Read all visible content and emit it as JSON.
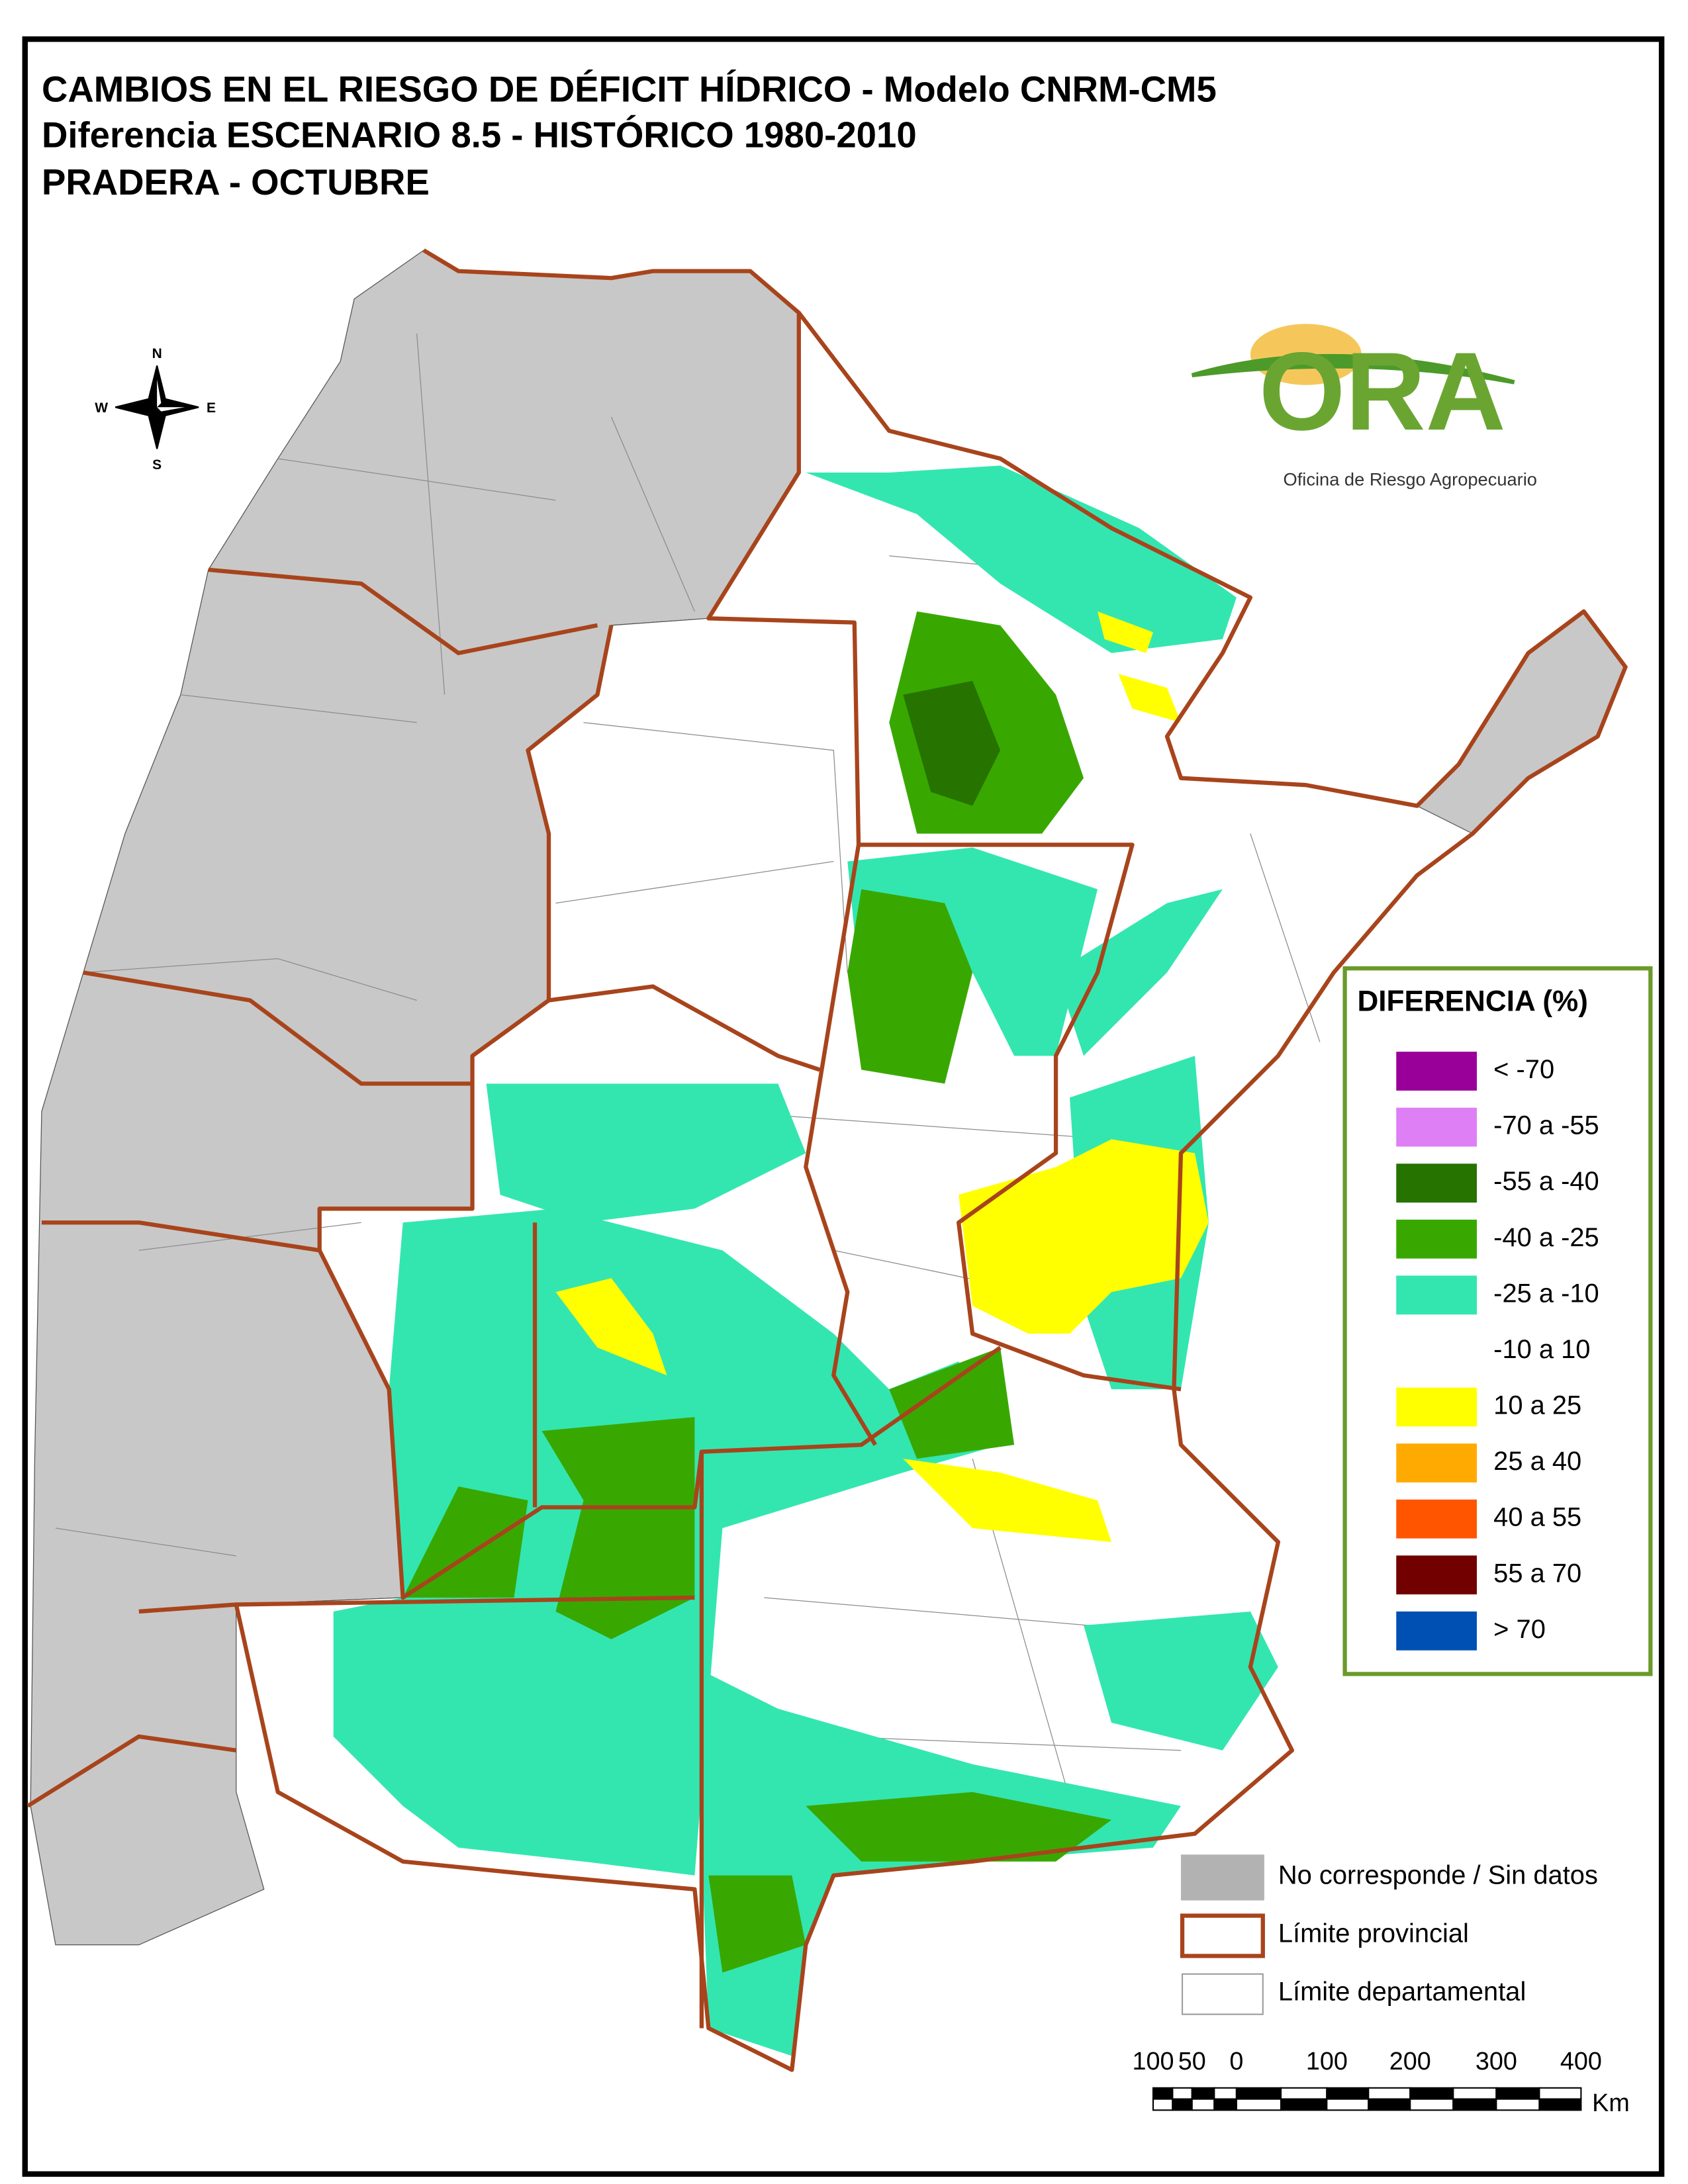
{
  "header": {
    "title_lines": [
      "CAMBIOS EN EL RIESGO DE DÉFICIT HÍDRICO - Modelo CNRM-CM5",
      "Diferencia ESCENARIO 8.5 - HISTÓRICO 1980-2010",
      "PRADERA - OCTUBRE"
    ]
  },
  "compass": {
    "north": "N",
    "south": "S",
    "east": "E",
    "west": "W"
  },
  "logo": {
    "text": "ORA",
    "subtitle": "Oficina de Riesgo Agropecuario"
  },
  "legend": {
    "title": "DIFERENCIA (%)",
    "items": [
      {
        "label": "< -70",
        "color": "#990099"
      },
      {
        "label": "-70 a -55",
        "color": "#df7ff5"
      },
      {
        "label": "-55 a -40",
        "color": "#267300"
      },
      {
        "label": "-40 a -25",
        "color": "#38a800"
      },
      {
        "label": "-25 a -10",
        "color": "#33e6b0"
      },
      {
        "label": "-10 a 10",
        "color": "#ffffff"
      },
      {
        "label": "10 a 25",
        "color": "#ffff00"
      },
      {
        "label": "25 a 40",
        "color": "#ffaa00"
      },
      {
        "label": "40 a 55",
        "color": "#ff5500"
      },
      {
        "label": "55 a 70",
        "color": "#730000"
      },
      {
        "label": "> 70",
        "color": "#0050b4"
      }
    ]
  },
  "reference": {
    "items": [
      {
        "label": "No corresponde / Sin datos",
        "kind": "fill",
        "color": "#b2b2b2"
      },
      {
        "label": "Límite provincial",
        "kind": "outline",
        "color": "#a8441c"
      },
      {
        "label": "Límite departamental",
        "kind": "outline",
        "color": "#9c9c9c"
      }
    ]
  },
  "scale_bar": {
    "labels": [
      "100",
      "50",
      "0",
      "100",
      "200",
      "300",
      "400"
    ],
    "unit": "Km"
  }
}
